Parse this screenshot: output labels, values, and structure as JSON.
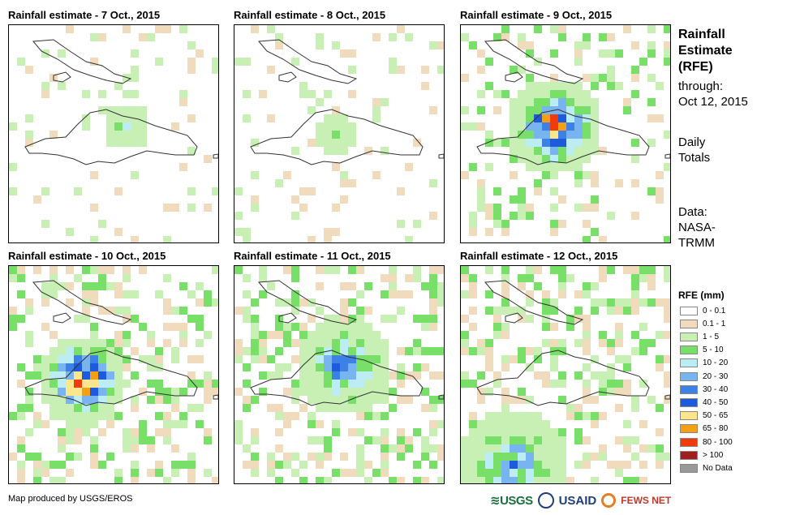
{
  "panels": [
    {
      "title": "Rainfall estimate - 7 Oct., 2015"
    },
    {
      "title": "Rainfall estimate - 8 Oct., 2015"
    },
    {
      "title": "Rainfall estimate - 9 Oct., 2015"
    },
    {
      "title": "Rainfall estimate - 10 Oct., 2015"
    },
    {
      "title": "Rainfall estimate - 11 Oct., 2015"
    },
    {
      "title": "Rainfall estimate - 12 Oct., 2015"
    }
  ],
  "side": {
    "title_line1": "Rainfall",
    "title_line2": "Estimate",
    "title_line3": "(RFE)",
    "through_label": "through:",
    "through_date": "Oct 12, 2015",
    "totals_line1": "Daily",
    "totals_line2": "Totals",
    "data_line1": "Data:",
    "data_line2": "NASA-",
    "data_line3": "TRMM"
  },
  "legend": {
    "title": "RFE (mm)",
    "items": [
      {
        "label": "0 - 0.1",
        "color": "#ffffff"
      },
      {
        "label": "0.1 - 1",
        "color": "#f0dcbc"
      },
      {
        "label": "1 - 5",
        "color": "#c8f0b4"
      },
      {
        "label": "5 - 10",
        "color": "#78e068"
      },
      {
        "label": "10 - 20",
        "color": "#bcecf4"
      },
      {
        "label": "20 - 30",
        "color": "#78b4f0"
      },
      {
        "label": "30 - 40",
        "color": "#3c82e6"
      },
      {
        "label": "40 - 50",
        "color": "#1e5adc"
      },
      {
        "label": "50 - 65",
        "color": "#fce68c"
      },
      {
        "label": "65 - 80",
        "color": "#f5a014"
      },
      {
        "label": "80 - 100",
        "color": "#f03c0a"
      },
      {
        "label": "> 100",
        "color": "#a01e1e"
      },
      {
        "label": "No Data",
        "color": "#999999"
      }
    ]
  },
  "footer": {
    "credit": "Map produced by USGS/EROS",
    "logo_usgs": "≋USGS",
    "logo_usaid": "USAID",
    "logo_fews": "FEWS NET"
  }
}
